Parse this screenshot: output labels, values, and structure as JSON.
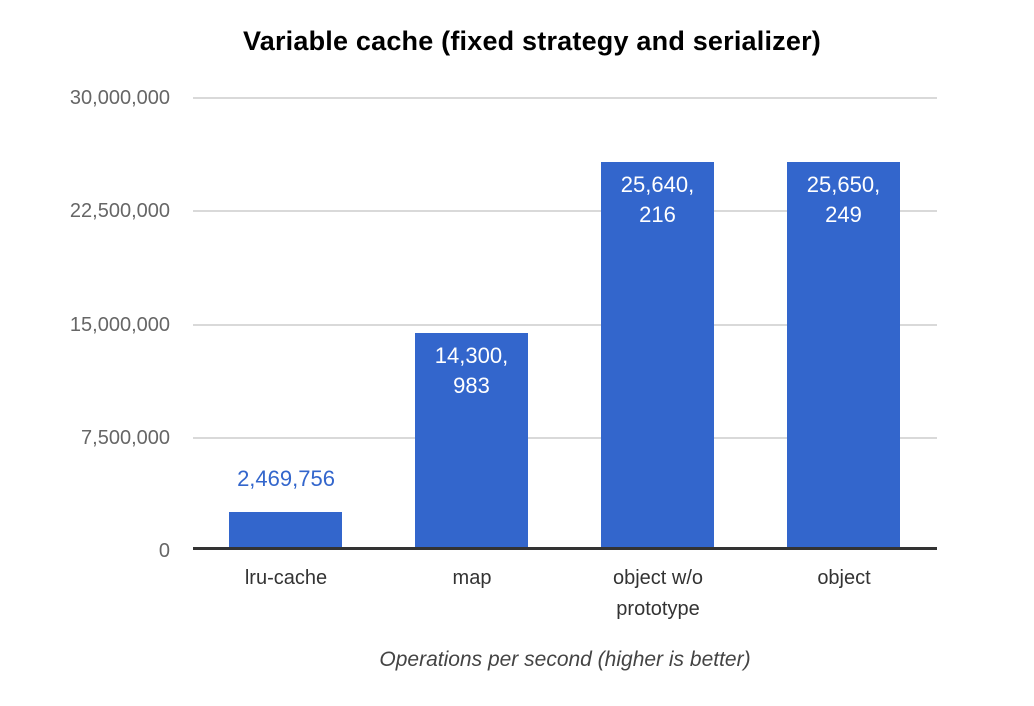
{
  "chart_data": {
    "type": "bar",
    "title": "Variable cache (fixed strategy and serializer)",
    "xlabel": "Operations per second (higher is better)",
    "ylabel": "",
    "ylim": [
      0,
      30000000
    ],
    "y_ticks": [
      0,
      7500000,
      15000000,
      22500000,
      30000000
    ],
    "y_tick_labels": [
      "0",
      "7,500,000",
      "15,000,000",
      "22,500,000",
      "30,000,000"
    ],
    "categories": [
      "lru-cache",
      "map",
      "object w/o prototype",
      "object"
    ],
    "values": [
      2469756,
      14300983,
      25640216,
      25650249
    ],
    "bars": [
      {
        "category": "lru-cache",
        "value": 2469756,
        "annotation": "2,469,756",
        "annotation_position": "outside"
      },
      {
        "category": "map",
        "value": 14300983,
        "annotation": "14,300,\n983",
        "annotation_position": "inside"
      },
      {
        "category": "object w/o\nprototype",
        "value": 25640216,
        "annotation": "25,640,\n216",
        "annotation_position": "inside"
      },
      {
        "category": "object",
        "value": 25650249,
        "annotation": "25,650,\n249",
        "annotation_position": "inside"
      }
    ],
    "bar_color": "#3366cc",
    "annotation_inside_color": "#ffffff",
    "annotation_outside_color": "#3366cc",
    "gridline_color": "#d9d9d9",
    "axis_line_color": "#333333",
    "grid": true,
    "legend": "none"
  }
}
